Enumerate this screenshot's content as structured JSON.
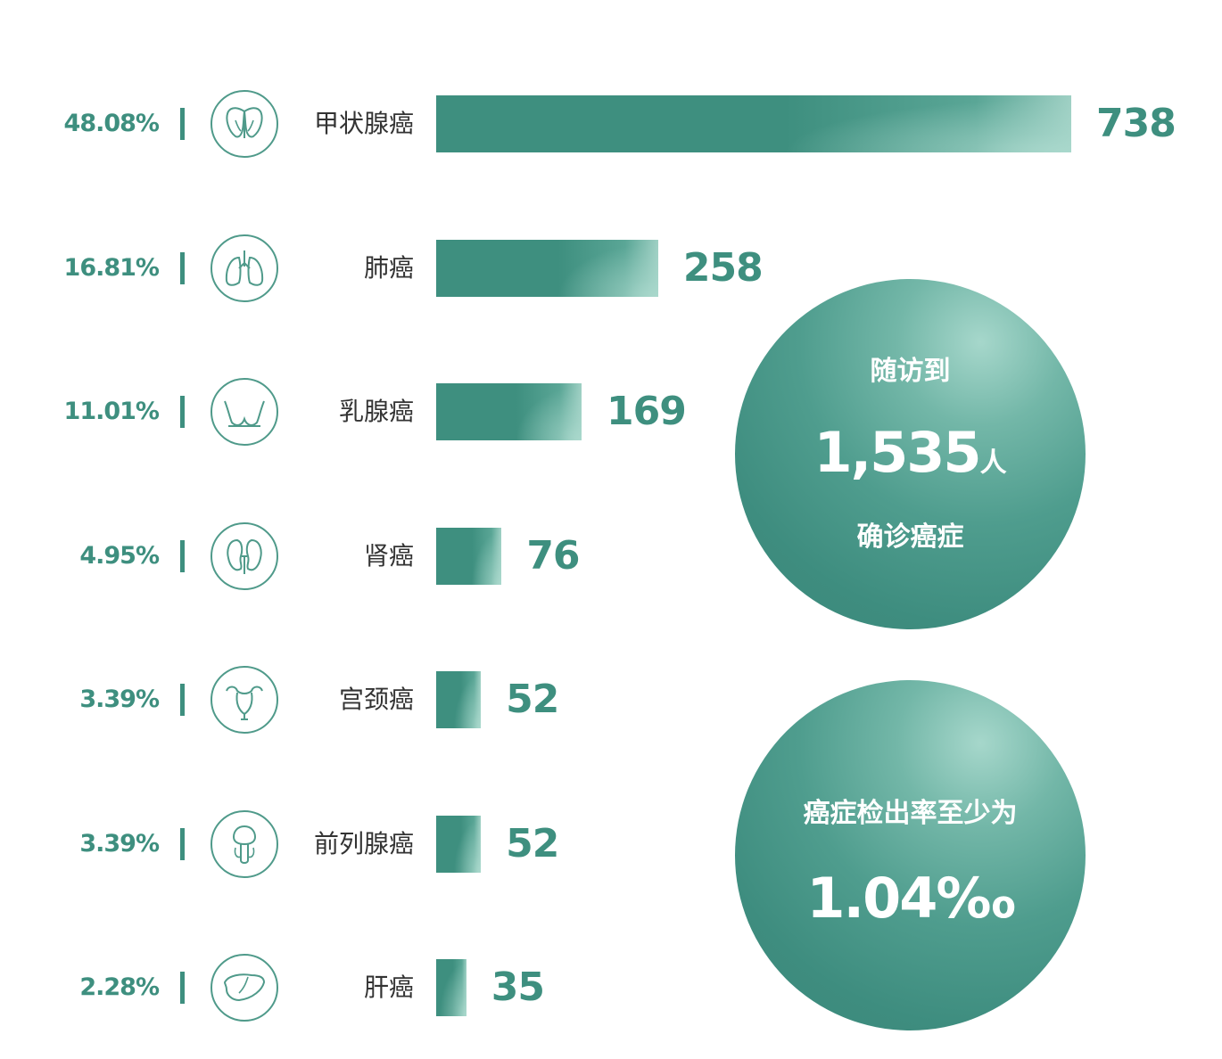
{
  "chart_data": {
    "type": "bar",
    "orientation": "horizontal",
    "categories": [
      "甲状腺癌",
      "肺癌",
      "乳腺癌",
      "肾癌",
      "宫颈癌",
      "前列腺癌",
      "肝癌"
    ],
    "values": [
      738,
      258,
      169,
      76,
      52,
      52,
      35
    ],
    "percentages": [
      "48.08%",
      "16.81%",
      "11.01%",
      "4.95%",
      "3.39%",
      "3.39%",
      "2.28%"
    ],
    "icons": [
      "thyroid-icon",
      "lungs-icon",
      "breast-icon",
      "kidney-icon",
      "uterus-icon",
      "prostate-icon",
      "liver-icon"
    ],
    "xlim": [
      0,
      738
    ],
    "title": "",
    "xlabel": "",
    "ylabel": "",
    "grid": false,
    "colors": {
      "bar": "#3e8f7f",
      "bar_highlight": "#a9d8cc",
      "text_accent": "#3e8f7f",
      "label": "#333333"
    }
  },
  "summary": {
    "followup": {
      "line1": "随访到",
      "number": "1,535",
      "unit": "人",
      "line3": "确诊癌症"
    },
    "rate": {
      "line1": "癌症检出率至少为",
      "value": "1.04‰"
    }
  }
}
